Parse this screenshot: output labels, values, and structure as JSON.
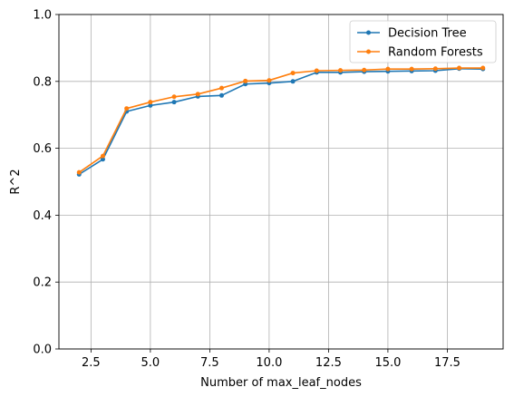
{
  "chart_data": {
    "type": "line",
    "title": "",
    "xlabel": "Number of max_leaf_nodes",
    "ylabel": "R^2",
    "xlim": [
      1.15,
      19.85
    ],
    "ylim": [
      0.0,
      1.0
    ],
    "grid": true,
    "legend_position": "top-right",
    "x_ticks": [
      2.5,
      5.0,
      7.5,
      10.0,
      12.5,
      15.0,
      17.5
    ],
    "x_tick_labels": [
      "2.5",
      "5.0",
      "7.5",
      "10.0",
      "12.5",
      "15.0",
      "17.5"
    ],
    "y_ticks": [
      0.0,
      0.2,
      0.4,
      0.6,
      0.8,
      1.0
    ],
    "y_tick_labels": [
      "0.0",
      "0.2",
      "0.4",
      "0.6",
      "0.8",
      "1.0"
    ],
    "x": [
      2,
      3,
      4,
      5,
      6,
      7,
      8,
      9,
      10,
      11,
      12,
      13,
      14,
      15,
      16,
      17,
      18,
      19
    ],
    "series": [
      {
        "name": "Decision Tree",
        "color": "#1f77b4",
        "values": [
          0.522,
          0.567,
          0.71,
          0.728,
          0.738,
          0.755,
          0.758,
          0.792,
          0.795,
          0.8,
          0.827,
          0.827,
          0.829,
          0.83,
          0.831,
          0.832,
          0.838,
          0.837
        ]
      },
      {
        "name": "Random Forests",
        "color": "#ff7f0e",
        "values": [
          0.528,
          0.577,
          0.719,
          0.738,
          0.754,
          0.762,
          0.78,
          0.801,
          0.803,
          0.825,
          0.832,
          0.833,
          0.834,
          0.837,
          0.837,
          0.838,
          0.84,
          0.84
        ]
      }
    ]
  }
}
